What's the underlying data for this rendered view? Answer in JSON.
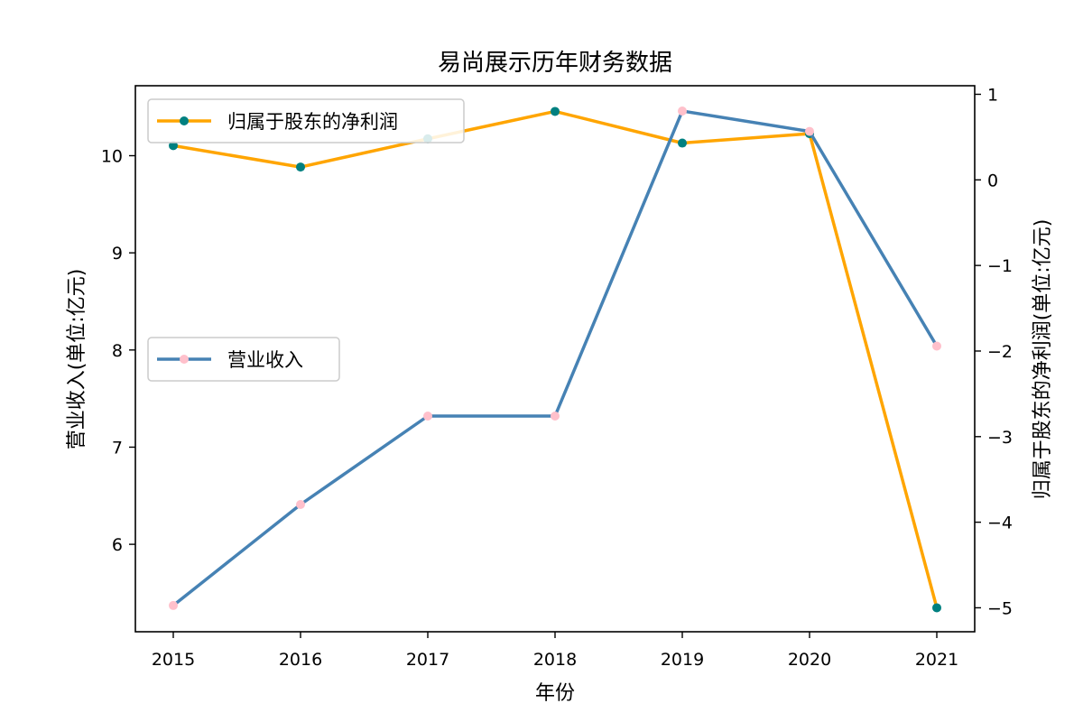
{
  "chart_data": {
    "type": "line",
    "title": "易尚展示历年财务数据",
    "xlabel": "年份",
    "ylabel_left": "营业收入(单位:亿元)",
    "ylabel_right": "归属于股东的净利润(单位:亿元)",
    "x": [
      "2015",
      "2016",
      "2017",
      "2018",
      "2019",
      "2020",
      "2021"
    ],
    "ylim_left": [
      5.1,
      10.72
    ],
    "ylim_right": [
      -5.28,
      1.1
    ],
    "yticks_left": [
      6,
      7,
      8,
      9,
      10
    ],
    "yticks_right": [
      -5,
      -4,
      -3,
      -2,
      -1,
      0,
      1
    ],
    "grid": false,
    "series": [
      {
        "name": "营业收入",
        "axis": "left",
        "values": [
          5.37,
          6.41,
          7.32,
          7.32,
          10.46,
          10.25,
          8.04
        ],
        "line_color": "#4682b4",
        "marker_color": "#ffc0cb",
        "legend_position": "center-left"
      },
      {
        "name": "归属于股东的净利润",
        "axis": "right",
        "values": [
          0.4,
          0.15,
          0.48,
          0.8,
          0.43,
          0.54,
          -5.0
        ],
        "line_color": "#ffa500",
        "marker_color": "#008080",
        "legend_position": "top-left"
      }
    ]
  }
}
